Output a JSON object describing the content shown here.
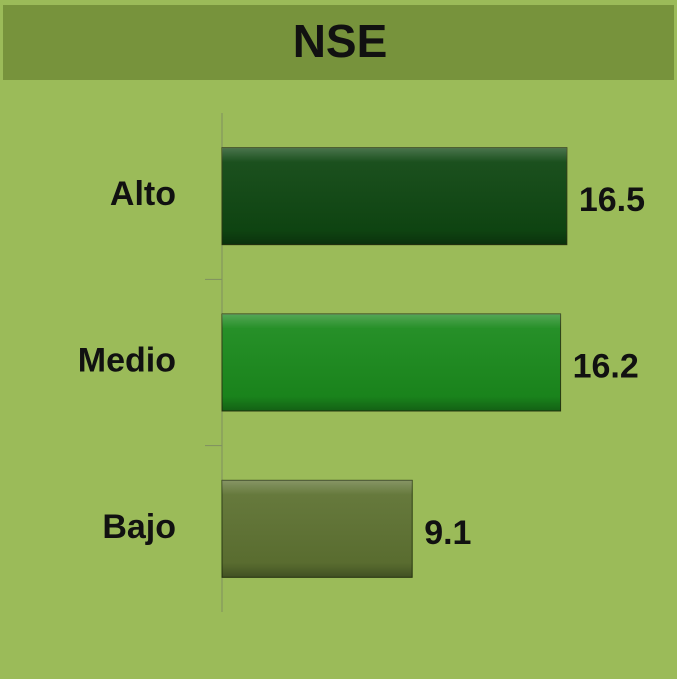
{
  "chart_data": {
    "type": "barh",
    "title": "NSE",
    "categories": [
      "Alto",
      "Medio",
      "Bajo"
    ],
    "values": [
      16.5,
      16.2,
      9.1
    ],
    "colors": [
      "#0f4712",
      "#1b8a1d",
      "#5e7232"
    ]
  }
}
